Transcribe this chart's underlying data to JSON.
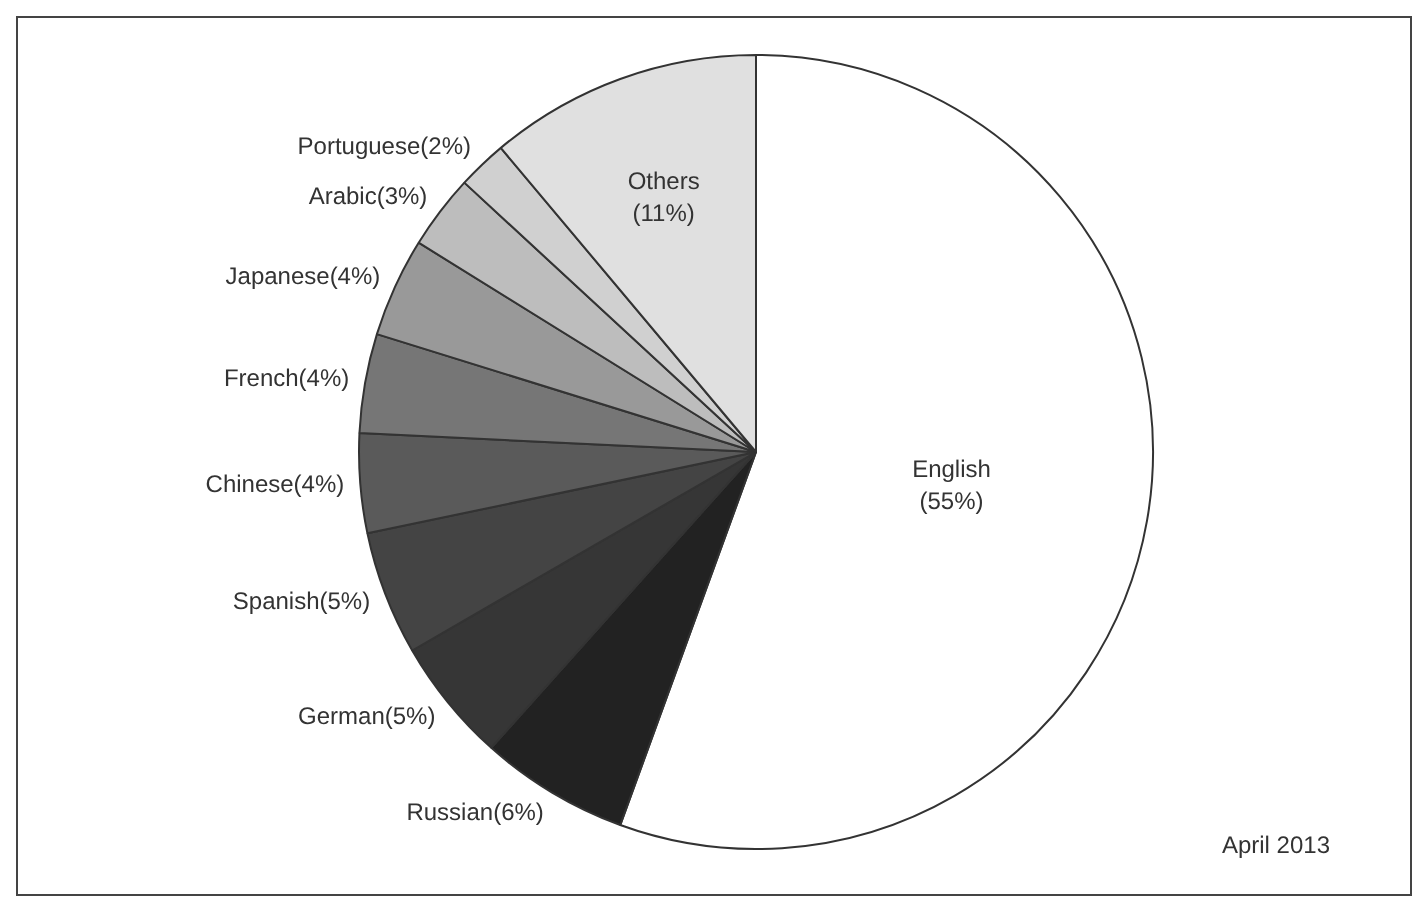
{
  "chart_data": {
    "type": "pie",
    "categories": [
      "English",
      "Russian",
      "German",
      "Spanish",
      "Chinese",
      "French",
      "Japanese",
      "Arabic",
      "Portuguese",
      "Others"
    ],
    "values": [
      55,
      6,
      5,
      5,
      4,
      4,
      4,
      3,
      2,
      11
    ],
    "value_labels": [
      "(55%)",
      "(6%)",
      "(5%)",
      "(5%)",
      "(4%)",
      "(4%)",
      "(4%)",
      "(3%)",
      "(2%)",
      "(11%)"
    ],
    "colors": [
      "#ffffff",
      "#222222",
      "#363636",
      "#444444",
      "#5a5a5a",
      "#767676",
      "#999999",
      "#bdbdbd",
      "#d0d0d0",
      "#e0e0e0"
    ],
    "annotations": [
      "April 2013"
    ],
    "legend": false
  }
}
